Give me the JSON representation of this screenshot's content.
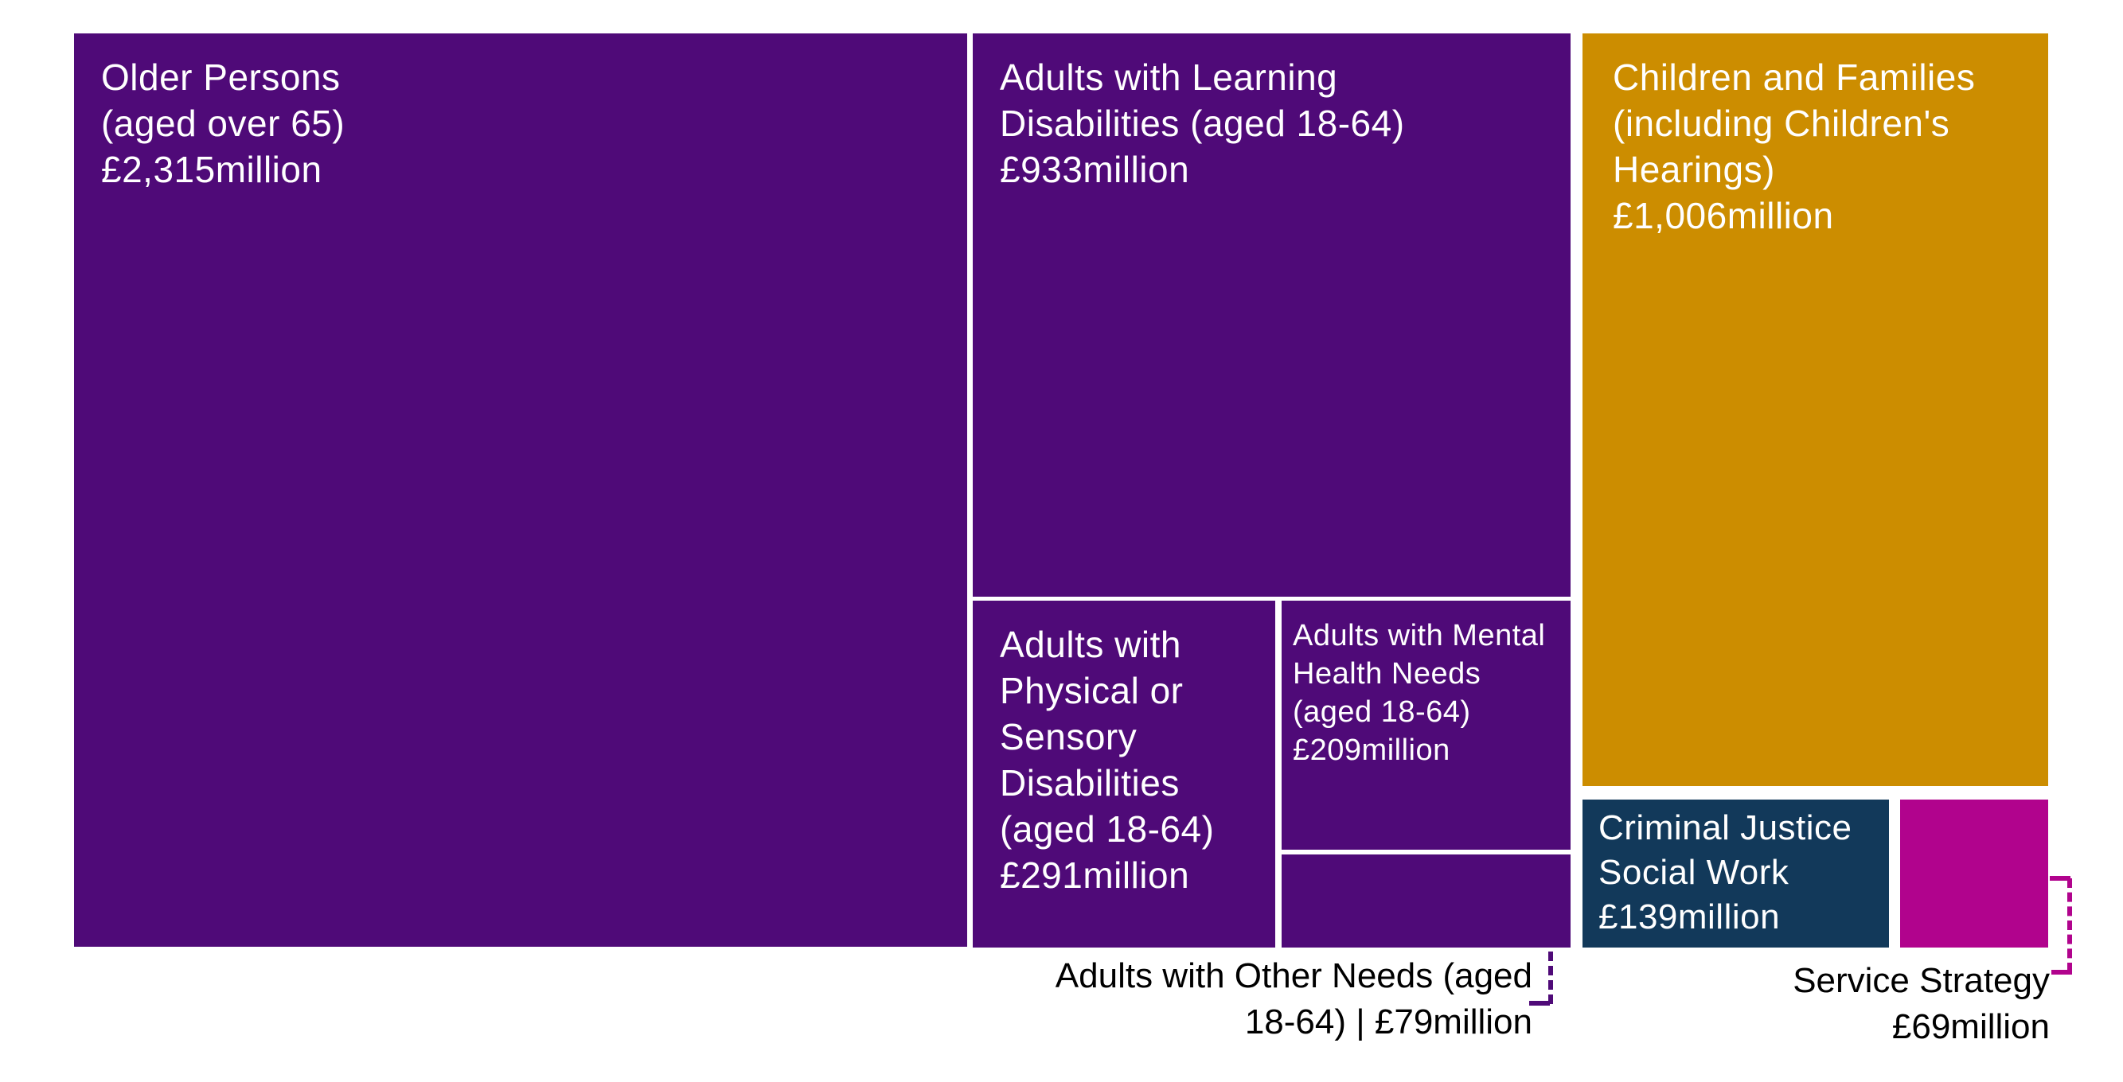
{
  "chart_data": {
    "type": "treemap",
    "currency": "£",
    "unit": "million",
    "legend_position": "none",
    "label_color_inside": "#FFFFFF",
    "label_color_outside": "#000000",
    "items": [
      {
        "name": "Older Persons (aged over 65)",
        "value_millions": 2315,
        "display_value": "£2,315million",
        "color": "#4F0A78",
        "label_placement": "inside",
        "label_lines": [
          "Older Persons",
          "(aged over 65)",
          "£2,315million"
        ]
      },
      {
        "name": "Adults with Learning Disabilities (aged 18-64)",
        "value_millions": 933,
        "display_value": "£933million",
        "color": "#4F0A78",
        "label_placement": "inside",
        "label_lines": [
          "Adults with Learning",
          "Disabilities (aged 18-64)",
          "£933million"
        ]
      },
      {
        "name": "Children and Families (including Children's Hearings)",
        "value_millions": 1006,
        "display_value": "£1,006million",
        "color": "#CC8D00",
        "label_placement": "inside",
        "label_lines": [
          "Children and Families",
          "(including Children's",
          "Hearings)",
          "£1,006million"
        ]
      },
      {
        "name": "Adults with Physical or Sensory Disabilities (aged 18-64)",
        "value_millions": 291,
        "display_value": "£291million",
        "color": "#4F0A78",
        "label_placement": "inside",
        "label_lines": [
          "Adults with",
          "Physical or",
          "Sensory",
          "Disabilities",
          "(aged 18-64)",
          "£291million"
        ]
      },
      {
        "name": "Adults with Mental Health Needs (aged 18-64)",
        "value_millions": 209,
        "display_value": "£209million",
        "color": "#4F0A78",
        "label_placement": "inside",
        "label_lines": [
          "Adults with Mental",
          "Health Needs",
          "(aged 18-64)",
          "£209million"
        ]
      },
      {
        "name": "Adults with Other Needs (aged 18-64)",
        "value_millions": 79,
        "display_value": "£79million",
        "color": "#4F0A78",
        "label_placement": "outside-below-with-dashed-leader",
        "label_lines": [
          "Adults with Other Needs (aged",
          "18-64) | £79million"
        ]
      },
      {
        "name": "Criminal Justice Social Work",
        "value_millions": 139,
        "display_value": "£139million",
        "color": "#12395A",
        "label_placement": "inside",
        "label_lines": [
          "Criminal Justice",
          "Social Work",
          "£139million"
        ]
      },
      {
        "name": "Service Strategy",
        "value_millions": 69,
        "display_value": "£69million",
        "color": "#B1038D",
        "label_placement": "outside-below-with-dashed-leader",
        "label_lines": [
          "Service Strategy",
          "£69million"
        ]
      }
    ],
    "colors": {
      "purple": "#4F0A78",
      "gold": "#CC8D00",
      "navy": "#12395A",
      "magenta": "#B1038D",
      "background": "#FFFFFF"
    }
  }
}
